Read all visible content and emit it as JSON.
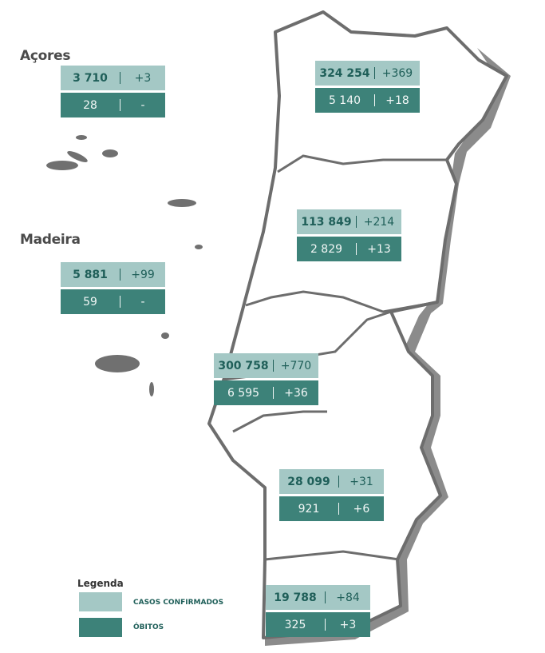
{
  "regions": [
    {
      "name": "Açores",
      "cases": "3 710",
      "new_cases": "+3",
      "deaths": "28",
      "new_deaths": "-"
    },
    {
      "name": "Madeira",
      "cases": "5 881",
      "new_cases": "+99",
      "deaths": "59",
      "new_deaths": "-"
    },
    {
      "cases": "324 254",
      "new_cases": "+369",
      "deaths": "5 140",
      "new_deaths": "+18"
    },
    {
      "cases": "113 849",
      "new_cases": "+214",
      "deaths": "2 829",
      "new_deaths": "+13"
    },
    {
      "cases": "300 758",
      "new_cases": "+770",
      "deaths": "6 595",
      "new_deaths": "+36"
    },
    {
      "cases": "28 099",
      "new_cases": "+31",
      "deaths": "921",
      "new_deaths": "+6"
    },
    {
      "cases": "19 788",
      "new_cases": "+84",
      "deaths": "325",
      "new_deaths": "+3"
    }
  ],
  "legend": {
    "title": "Legenda",
    "items": [
      "CASOS CONFIRMADOS",
      "ÓBITOS"
    ]
  }
}
